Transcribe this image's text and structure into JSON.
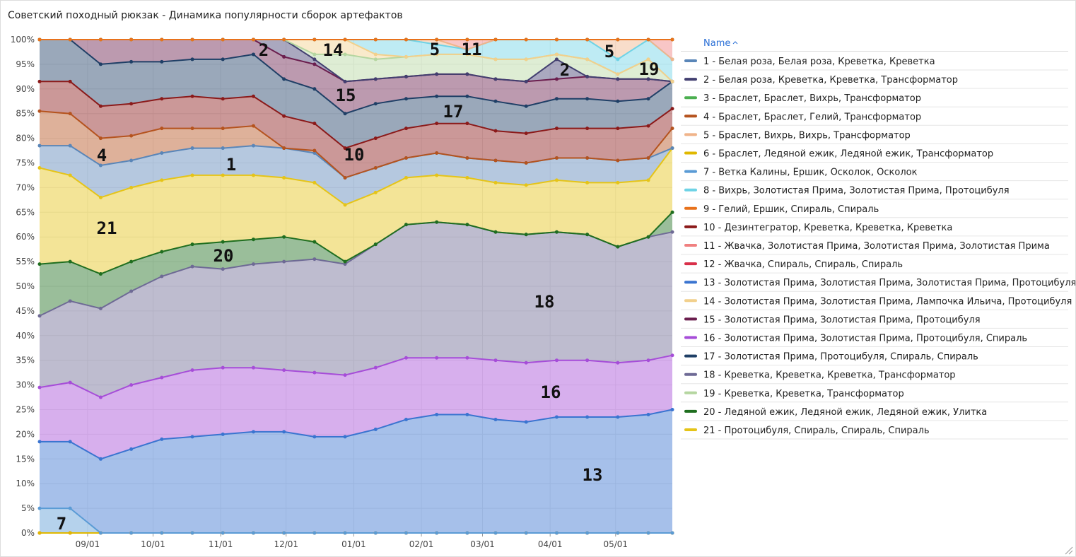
{
  "chart_data": {
    "type": "stacked_area",
    "title": "Советский походный рюкзак - Динамика популярности сборок артефактов",
    "legend_title": "Name",
    "x": [
      "08/10",
      "08/24",
      "09/07",
      "09/21",
      "10/05",
      "10/19",
      "11/02",
      "11/16",
      "11/30",
      "12/14",
      "12/28",
      "01/11",
      "01/25",
      "02/08",
      "02/22",
      "03/07",
      "03/21",
      "04/04",
      "04/18",
      "05/02",
      "05/16",
      "05/27"
    ],
    "xlim": [
      "08/10",
      "05/27"
    ],
    "xticks": [
      "09/01",
      "10/01",
      "11/01",
      "12/01",
      "01/01",
      "02/01",
      "03/01",
      "04/01",
      "05/01"
    ],
    "ylim": [
      0,
      100
    ],
    "yticks": [
      {
        "value": 0,
        "label": "0%"
      },
      {
        "value": 5,
        "label": "5%"
      },
      {
        "value": 10,
        "label": "10%"
      },
      {
        "value": 15,
        "label": "15%"
      },
      {
        "value": 20,
        "label": "20%"
      },
      {
        "value": 25,
        "label": "25%"
      },
      {
        "value": 30,
        "label": "30%"
      },
      {
        "value": 35,
        "label": "35%"
      },
      {
        "value": 40,
        "label": "40%"
      },
      {
        "value": 45,
        "label": "45%"
      },
      {
        "value": 50,
        "label": "50%"
      },
      {
        "value": 55,
        "label": "55%"
      },
      {
        "value": 60,
        "label": "60%"
      },
      {
        "value": 65,
        "label": "65%"
      },
      {
        "value": 70,
        "label": "70%"
      },
      {
        "value": 75,
        "label": "75%"
      },
      {
        "value": 80,
        "label": "80%"
      },
      {
        "value": 85,
        "label": "85%"
      },
      {
        "value": 90,
        "label": "90%"
      },
      {
        "value": 95,
        "label": "95%"
      },
      {
        "value": 100,
        "label": "100%"
      }
    ],
    "grid": true,
    "legend": "right",
    "series": [
      {
        "name": "1 - Белая роза, Белая роза, Креветка, Креветка",
        "color": "#5a86b8",
        "values": [
          4.5,
          6,
          6.5,
          5.5,
          5.5,
          5.5,
          5.5,
          6,
          6,
          6,
          5.5,
          5,
          4,
          4.5,
          4,
          4.5,
          4.5,
          4.5,
          5,
          4.5,
          4.5,
          0
        ]
      },
      {
        "name": "2 - Белая роза, Креветка, Креветка, Трансформатор",
        "color": "#423f70",
        "values": [
          0,
          0,
          0,
          0,
          0,
          0,
          0,
          0,
          3.5,
          1,
          0,
          0,
          0,
          0,
          0,
          0,
          0,
          4,
          0,
          0,
          0,
          0
        ]
      },
      {
        "name": "3 - Браслет, Браслет, Вихрь, Трансформатор",
        "color": "#4caf50",
        "values": [
          0,
          0,
          0,
          0,
          0,
          0,
          0,
          0,
          0,
          0,
          0,
          0,
          0,
          0,
          0,
          0,
          0,
          0,
          0,
          0,
          0,
          0
        ]
      },
      {
        "name": "4 - Браслет, Браслет, Гелий, Трансформатор",
        "color": "#b5531e",
        "values": [
          7,
          6.5,
          5.5,
          5,
          5,
          4,
          4,
          4,
          0,
          0.5,
          0,
          0,
          0,
          0,
          0,
          0,
          0,
          0,
          0,
          0,
          0,
          4
        ]
      },
      {
        "name": "5 - Браслет, Вихрь, Вихрь, Трансформатор",
        "color": "#f0b48a",
        "values": [
          0,
          0,
          0,
          0,
          0,
          0,
          0,
          0,
          0,
          0,
          0,
          0,
          0,
          1,
          0,
          0,
          0,
          0,
          0,
          4,
          0,
          0
        ]
      },
      {
        "name": "6 - Браслет, Ледяной ежик, Ледяной ежик, Трансформатор",
        "color": "#e0b800",
        "values": [
          0,
          0,
          0,
          0,
          0,
          0,
          0,
          0,
          0,
          0,
          0,
          0,
          0,
          0,
          0,
          0,
          0,
          0,
          0,
          0,
          0,
          0
        ]
      },
      {
        "name": "7 - Ветка Калины, Ершик, Осколок, Осколок",
        "color": "#5a9bd5",
        "values": [
          5,
          5,
          0,
          0,
          0,
          0,
          0,
          0,
          0,
          0,
          0,
          0,
          0,
          0,
          0,
          0,
          0,
          0,
          0,
          0,
          0,
          0
        ]
      },
      {
        "name": "8 - Вихрь, Золотистая Прима, Золотистая Прима, Протоцибуля",
        "color": "#6fd3e6",
        "values": [
          0,
          0,
          0,
          0,
          0,
          0,
          0,
          0,
          0,
          0,
          0,
          3,
          3.5,
          2,
          1,
          4,
          4,
          3,
          4,
          3,
          4,
          4.5
        ]
      },
      {
        "name": "9 - Гелий, Ершик, Спираль, Спираль",
        "color": "#e8721c",
        "values": [
          0,
          0,
          0,
          0,
          0,
          0,
          0,
          0,
          0,
          0,
          0,
          0,
          0,
          0,
          0,
          0,
          0,
          0,
          0,
          0,
          0,
          0
        ]
      },
      {
        "name": "10 - Дезинтегратор, Креветка, Креветка, Креветка",
        "color": "#8b1a1a",
        "values": [
          6,
          6.5,
          6.5,
          6.5,
          6,
          6.5,
          6,
          6,
          6.5,
          5.5,
          6,
          6,
          6,
          6,
          7,
          6,
          6,
          6,
          6,
          6.5,
          6.5,
          4
        ]
      },
      {
        "name": "11 - Жвачка, Золотистая Прима, Золотистая Прима, Золотистая Прима",
        "color": "#f08080",
        "values": [
          0,
          0,
          0,
          0,
          0,
          0,
          0,
          0,
          0,
          0,
          0,
          0,
          0,
          0,
          2,
          0,
          0,
          0,
          0,
          0,
          0,
          4
        ]
      },
      {
        "name": "12 - Жвачка, Спираль, Спираль, Спираль",
        "color": "#d9304a",
        "values": [
          0,
          0,
          0,
          0,
          0,
          0,
          0,
          0,
          0,
          0,
          0,
          0,
          0,
          0,
          0,
          0,
          0,
          0,
          0,
          0,
          0,
          0
        ]
      },
      {
        "name": "13 - Золотистая Прима, Золотистая Прима, Золотистая Прима, Протоцибуля",
        "color": "#3a74d0",
        "values": [
          13.5,
          13.5,
          15,
          17,
          19,
          19.5,
          20,
          20.5,
          20.5,
          19.5,
          19.5,
          21,
          23,
          24,
          24,
          23,
          22.5,
          23.5,
          23.5,
          23.5,
          24,
          25
        ]
      },
      {
        "name": "14 - Золотистая Прима, Золотистая Прима, Лампочка Ильича, Протоцибуля",
        "color": "#f2d08c",
        "values": [
          0,
          0,
          0,
          0,
          0,
          0,
          0,
          0,
          0,
          3,
          3,
          1,
          0,
          0,
          0,
          0,
          0,
          0,
          0,
          0,
          0,
          0
        ]
      },
      {
        "name": "15 - Золотистая Прима, Золотистая Прима, Протоцибуля",
        "color": "#6b1e4e",
        "values": [
          0,
          0,
          5,
          4.5,
          4.5,
          4,
          4,
          3,
          4.5,
          5,
          6.5,
          5,
          4.5,
          4.5,
          4.5,
          4.5,
          5,
          4,
          4.5,
          4.5,
          4,
          0
        ]
      },
      {
        "name": "16 - Золотистая Прима, Золотистая Прима, Протоцибуля, Спираль",
        "color": "#a64dd8",
        "values": [
          11,
          12,
          12.5,
          13,
          12.5,
          13.5,
          13.5,
          13,
          12.5,
          13,
          12.5,
          12.5,
          12.5,
          11.5,
          11.5,
          12,
          12,
          11.5,
          11.5,
          11,
          11,
          11
        ]
      },
      {
        "name": "17 - Золотистая Прима, Протоцибуля, Спираль, Спираль",
        "color": "#1f3f66",
        "values": [
          8.5,
          8.5,
          8.5,
          8.5,
          7.5,
          7.5,
          8,
          8.5,
          7.5,
          7,
          7,
          7,
          6,
          5.5,
          5.5,
          6,
          5.5,
          6,
          6,
          5.5,
          5.5,
          5.5
        ]
      },
      {
        "name": "18 - Креветка, Креветка, Креветка, Трансформатор",
        "color": "#6e6a95",
        "values": [
          14.5,
          16.5,
          18,
          19,
          20.5,
          21,
          20,
          21,
          22,
          23,
          22.5,
          25,
          27,
          27.5,
          27,
          26,
          26,
          26,
          25.5,
          23.5,
          25,
          25
        ]
      },
      {
        "name": "19 - Креветка, Креветка, Трансформатор",
        "color": "#b5d6a0",
        "values": [
          0,
          0,
          0,
          0,
          0,
          0,
          0,
          0,
          0,
          1,
          5.5,
          4,
          4,
          4,
          4,
          4,
          4.5,
          1,
          3.5,
          1,
          4,
          0
        ]
      },
      {
        "name": "20 - Ледяной ежик, Ледяной ежик, Ледяной ежик, Улитка",
        "color": "#1f6e1f",
        "values": [
          10.5,
          8,
          7,
          6,
          5,
          4.5,
          5.5,
          5,
          5,
          3.5,
          0.5,
          0,
          0,
          0,
          0,
          0,
          0,
          0,
          0,
          0,
          0,
          4
        ]
      },
      {
        "name": "21 - Протоцибуля, Спираль, Спираль, Спираль",
        "color": "#e5c418",
        "values": [
          19.5,
          17.5,
          15.5,
          15,
          14.5,
          14,
          13.5,
          13,
          12,
          12,
          11.5,
          10.5,
          9.5,
          9.5,
          9.5,
          10,
          10,
          10.5,
          10.5,
          13,
          11.5,
          13
        ]
      }
    ],
    "annotations": [
      {
        "text": "2"
      },
      {
        "text": "14"
      },
      {
        "text": "5"
      },
      {
        "text": "11"
      },
      {
        "text": "15"
      },
      {
        "text": "17"
      },
      {
        "text": "10"
      },
      {
        "text": "4"
      },
      {
        "text": "1"
      },
      {
        "text": "21"
      },
      {
        "text": "20"
      },
      {
        "text": "18"
      },
      {
        "text": "16"
      },
      {
        "text": "13"
      },
      {
        "text": "7"
      },
      {
        "text": "2"
      },
      {
        "text": "5"
      },
      {
        "text": "19"
      }
    ]
  }
}
